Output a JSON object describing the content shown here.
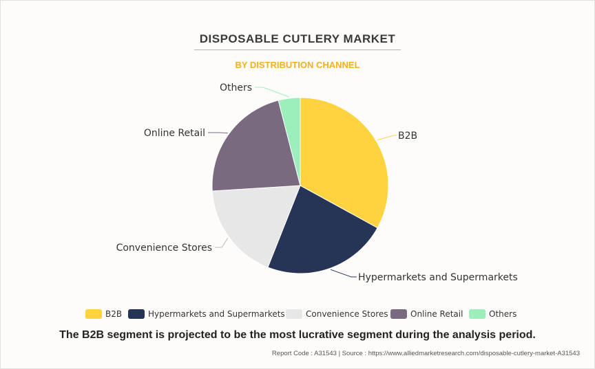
{
  "chart_data": {
    "type": "pie",
    "title": "DISPOSABLE CUTLERY MARKET",
    "subtitle": "BY DISTRIBUTION CHANNEL",
    "categories": [
      "B2B",
      "Hypermarkets and Supermarkets",
      "Convenience Stores",
      "Online Retail",
      "Others"
    ],
    "values": [
      33,
      23,
      18,
      22,
      4
    ],
    "colors": [
      "#ffd23f",
      "#263556",
      "#e7e7e7",
      "#7a6a80",
      "#9ceebb"
    ],
    "legend": "bottom"
  },
  "footnote": "The B2B segment is projected to be the most lucrative segment during the analysis period.",
  "credits": "Report Code : A31543  |  Source : https://www.alliedmarketresearch.com/disposable-cutlery-market-A31543"
}
